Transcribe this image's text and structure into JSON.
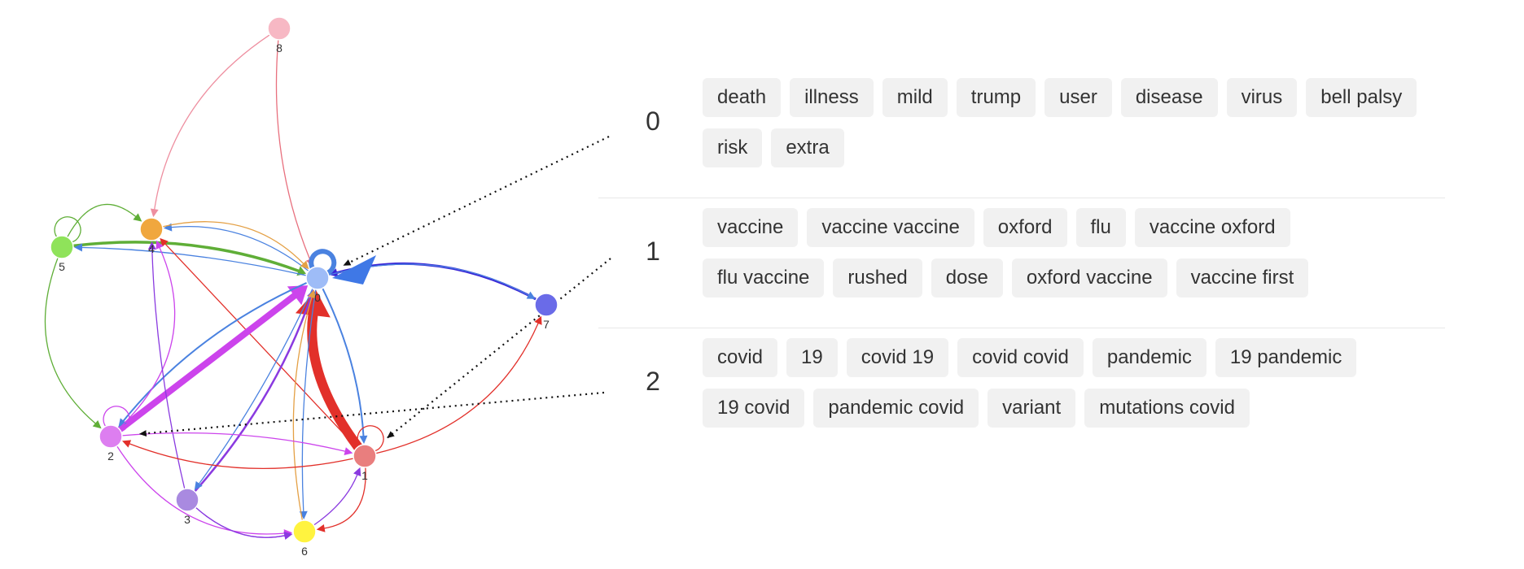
{
  "graph": {
    "nodes": [
      {
        "id": "0",
        "label": "0",
        "color": "#9ebcf7"
      },
      {
        "id": "1",
        "label": "1",
        "color": "#e97e7e"
      },
      {
        "id": "2",
        "label": "2",
        "color": "#dd7ef0"
      },
      {
        "id": "3",
        "label": "3",
        "color": "#a98ae0"
      },
      {
        "id": "4",
        "label": "4",
        "color": "#f0a73e"
      },
      {
        "id": "5",
        "label": "5",
        "color": "#8fe35a"
      },
      {
        "id": "6",
        "label": "6",
        "color": "#fff33f"
      },
      {
        "id": "7",
        "label": "7",
        "color": "#6a6be8"
      },
      {
        "id": "8",
        "label": "8",
        "color": "#f7b8c4"
      }
    ],
    "edges": [
      {
        "from": "8",
        "to": "0",
        "color": "#e8707e"
      },
      {
        "from": "8",
        "to": "4",
        "color": "#ee8fa0"
      },
      {
        "from": "5",
        "to": "0",
        "color": "#5fae37"
      },
      {
        "from": "0",
        "to": "5",
        "color": "#4a82e0"
      },
      {
        "from": "5",
        "to": "4",
        "color": "#5fae37"
      },
      {
        "from": "5",
        "to": "2",
        "color": "#5fae37"
      },
      {
        "from": "0",
        "to": "4",
        "color": "#4a82e0"
      },
      {
        "from": "4",
        "to": "0",
        "color": "#e4a045"
      },
      {
        "from": "1",
        "to": "4",
        "color": "#e2302a"
      },
      {
        "from": "1",
        "to": "0",
        "color": "#e2302a"
      },
      {
        "from": "0",
        "to": "1",
        "color": "#4a82e0"
      },
      {
        "from": "7",
        "to": "0",
        "color": "#3a24d6"
      },
      {
        "from": "0",
        "to": "7",
        "color": "#4a82e0"
      },
      {
        "from": "1",
        "to": "7",
        "color": "#e2302a"
      },
      {
        "from": "2",
        "to": "0",
        "color": "#cc44ec"
      },
      {
        "from": "0",
        "to": "2",
        "color": "#4a82e0"
      },
      {
        "from": "2",
        "to": "4",
        "color": "#cc44ec"
      },
      {
        "from": "3",
        "to": "4",
        "color": "#8a3ae0"
      },
      {
        "from": "3",
        "to": "0",
        "color": "#8a3ae0"
      },
      {
        "from": "0",
        "to": "3",
        "color": "#4a82e0"
      },
      {
        "from": "0",
        "to": "6",
        "color": "#4a82e0"
      },
      {
        "from": "6",
        "to": "0",
        "color": "#e4a045"
      },
      {
        "from": "1",
        "to": "2",
        "color": "#e2302a"
      },
      {
        "from": "2",
        "to": "1",
        "color": "#cc44ec"
      },
      {
        "from": "1",
        "to": "6",
        "color": "#e2302a"
      },
      {
        "from": "6",
        "to": "1",
        "color": "#8a3ae0"
      },
      {
        "from": "3",
        "to": "6",
        "color": "#8a3ae0"
      },
      {
        "from": "2",
        "to": "6",
        "color": "#cc44ec"
      },
      {
        "from": "3",
        "to": "6",
        "color": "#8a3ae0"
      },
      {
        "from": "0",
        "to": "0",
        "color": "#4a82e0"
      },
      {
        "from": "1",
        "to": "1",
        "color": "#e2302a"
      },
      {
        "from": "2",
        "to": "2",
        "color": "#cc44ec"
      },
      {
        "from": "5",
        "to": "5",
        "color": "#5fae37"
      }
    ]
  },
  "topics": [
    {
      "id": "0",
      "words": [
        "death",
        "illness",
        "mild",
        "trump",
        "user",
        "disease",
        "virus",
        "bell palsy",
        "risk",
        "extra"
      ]
    },
    {
      "id": "1",
      "words": [
        "vaccine",
        "vaccine vaccine",
        "oxford",
        "flu",
        "vaccine oxford",
        "flu vaccine",
        "rushed",
        "dose",
        "oxford vaccine",
        "vaccine first"
      ]
    },
    {
      "id": "2",
      "words": [
        "covid",
        "19",
        "covid 19",
        "covid covid",
        "pandemic",
        "19 pandemic",
        "19 covid",
        "pandemic covid",
        "variant",
        "mutations covid"
      ]
    }
  ],
  "pointers": [
    {
      "topic": "0",
      "node": "0"
    },
    {
      "topic": "1",
      "node": "1"
    },
    {
      "topic": "2",
      "node": "2"
    }
  ]
}
